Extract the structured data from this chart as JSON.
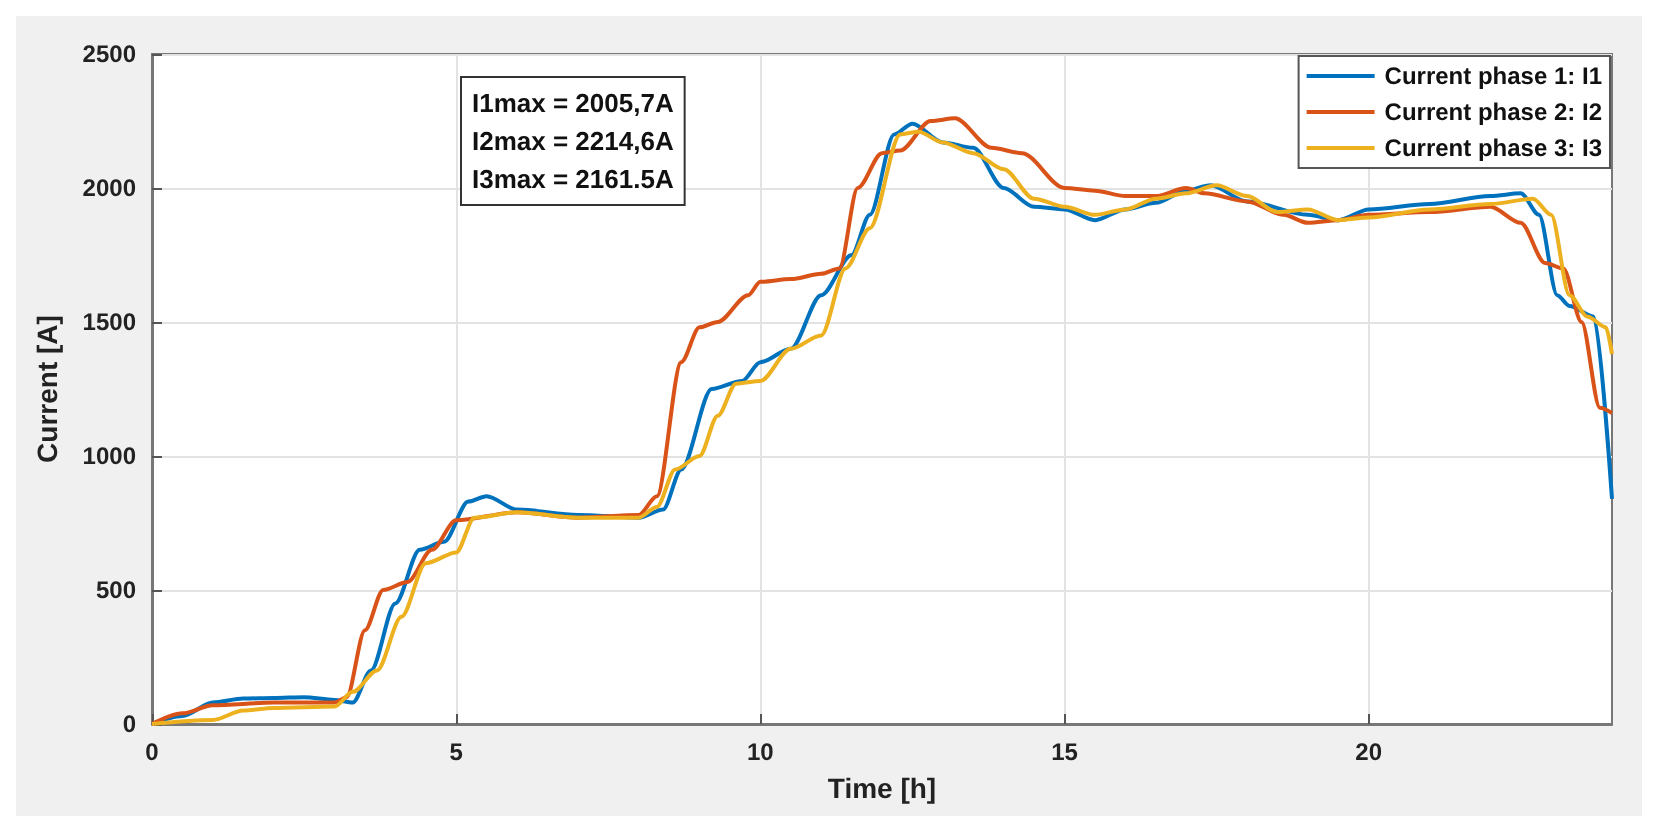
{
  "chart_data": {
    "type": "line",
    "xlabel": "Time [h]",
    "ylabel": "Current [A]",
    "xlim": [
      0,
      24
    ],
    "xticks": [
      0,
      5,
      10,
      15,
      20
    ],
    "ylim": [
      0,
      2500
    ],
    "yticks": [
      0,
      500,
      1000,
      1500,
      2000,
      2500
    ],
    "grid": true,
    "legend": "top right",
    "marker": "none",
    "line_style": "solid",
    "annotations": [
      "I1max = 2005,7A",
      "I2max = 2214,6A",
      "I3max = 2161.5A"
    ],
    "series": [
      {
        "name": "Current phase 1: I1",
        "color": "#0072bd",
        "x": [
          0,
          0.5,
          1,
          1.5,
          2,
          2.5,
          3,
          3.3,
          3.6,
          4,
          4.4,
          4.8,
          5.2,
          5.5,
          6,
          7,
          8,
          8.4,
          8.7,
          9.2,
          9.7,
          10,
          10.5,
          11,
          11.5,
          11.8,
          12.2,
          12.5,
          13,
          13.5,
          14,
          14.5,
          15,
          15.5,
          16,
          16.5,
          17,
          17.4,
          18,
          19,
          19.5,
          20,
          21,
          22,
          22.5,
          22.8,
          23.1,
          23.3,
          23.7,
          24
        ],
        "values": [
          0,
          30,
          80,
          95,
          97,
          100,
          90,
          80,
          200,
          450,
          650,
          680,
          830,
          850,
          800,
          780,
          770,
          800,
          950,
          1250,
          1280,
          1350,
          1400,
          1600,
          1750,
          1900,
          2200,
          2240,
          2170,
          2150,
          2000,
          1930,
          1920,
          1880,
          1920,
          1945,
          1990,
          2010,
          1950,
          1900,
          1880,
          1920,
          1940,
          1970,
          1980,
          1900,
          1600,
          1560,
          1520,
          840
        ]
      },
      {
        "name": "Current phase 2: I2",
        "color": "#d95319",
        "x": [
          0,
          0.5,
          1,
          2,
          3,
          3.2,
          3.5,
          3.8,
          4.2,
          4.6,
          5,
          6,
          7,
          8,
          8.3,
          8.7,
          9,
          9.3,
          9.8,
          10,
          10.5,
          11,
          11.3,
          11.6,
          12,
          12.3,
          12.8,
          13.2,
          13.8,
          14.3,
          15,
          15.5,
          16,
          16.5,
          17,
          17.3,
          18,
          18.6,
          19,
          19.5,
          20,
          21,
          22,
          22.5,
          22.9,
          23.2,
          23.5,
          23.8,
          24
        ],
        "values": [
          0,
          40,
          70,
          80,
          80,
          100,
          350,
          500,
          530,
          650,
          760,
          790,
          770,
          780,
          850,
          1350,
          1480,
          1500,
          1600,
          1650,
          1660,
          1680,
          1700,
          2000,
          2130,
          2140,
          2250,
          2260,
          2150,
          2130,
          2000,
          1990,
          1970,
          1970,
          2000,
          1980,
          1950,
          1900,
          1870,
          1880,
          1900,
          1910,
          1930,
          1870,
          1720,
          1700,
          1500,
          1180,
          1160
        ]
      },
      {
        "name": "Current phase 3: I3",
        "color": "#edb120",
        "x": [
          0,
          1,
          1.5,
          2,
          3,
          3.3,
          3.7,
          4.1,
          4.5,
          5,
          5.3,
          6,
          7,
          8,
          8.3,
          8.6,
          9,
          9.3,
          9.6,
          10,
          10.5,
          11,
          11.4,
          11.8,
          12.3,
          12.6,
          13,
          13.5,
          14,
          14.5,
          15,
          15.5,
          16,
          16.5,
          17,
          17.5,
          18,
          18.5,
          19,
          19.5,
          20,
          21,
          22,
          22.7,
          23,
          23.3,
          23.6,
          23.9,
          24
        ],
        "values": [
          0,
          15,
          50,
          60,
          65,
          120,
          200,
          400,
          600,
          640,
          770,
          790,
          770,
          770,
          810,
          950,
          1000,
          1150,
          1270,
          1280,
          1400,
          1450,
          1700,
          1850,
          2200,
          2210,
          2170,
          2130,
          2070,
          1960,
          1930,
          1900,
          1920,
          1960,
          1980,
          2010,
          1970,
          1910,
          1920,
          1880,
          1890,
          1920,
          1940,
          1960,
          1900,
          1600,
          1520,
          1480,
          1380
        ]
      }
    ]
  }
}
